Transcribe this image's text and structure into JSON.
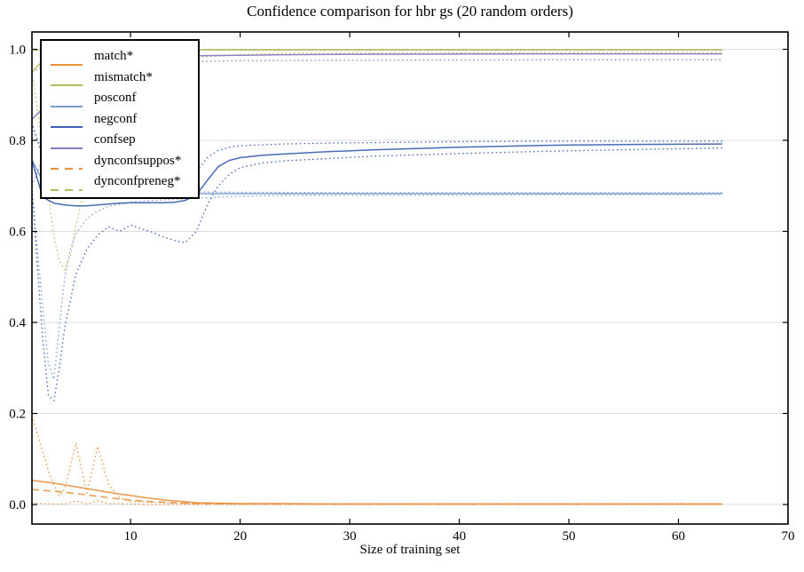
{
  "title": "Confidence comparison for hbr gs (20 random orders)",
  "legend": {
    "items": [
      {
        "id": "match",
        "label": "match*",
        "color": "#E8913F",
        "style": "solid"
      },
      {
        "id": "mismatch",
        "label": "mismatch*",
        "color": "#B8BC60",
        "style": "solid"
      },
      {
        "id": "posconf",
        "label": "posconf",
        "color": "#7A9ED2",
        "style": "solid"
      },
      {
        "id": "negconf",
        "label": "negconf",
        "color": "#3F63B2",
        "style": "solid"
      },
      {
        "id": "confsep",
        "label": "confsep",
        "color": "#8A7BBE",
        "style": "solid"
      },
      {
        "id": "dynconfsuppos",
        "label": "dynconfsuppos*",
        "color": "#E8913F",
        "style": "dashed"
      },
      {
        "id": "dynconfpreneg",
        "label": "dynconfpreneg*",
        "color": "#B8BC60",
        "style": "dashed"
      }
    ]
  },
  "chart_data": {
    "type": "line",
    "title": "Confidence comparison for hbr gs (20 random orders)",
    "xlabel": "Size of training set",
    "ylabel": "",
    "xlim": [
      1,
      70
    ],
    "ylim": [
      -0.043,
      1.038
    ],
    "x_ticks": [
      "10",
      "20",
      "30",
      "40",
      "50",
      "60",
      "70"
    ],
    "x_tick_values": [
      10,
      20,
      30,
      40,
      50,
      60,
      70
    ],
    "y_ticks": [
      "0.0",
      "0.2",
      "0.4",
      "0.6",
      "0.8",
      "1.0"
    ],
    "y_tick_values": [
      0.0,
      0.2,
      0.4,
      0.6,
      0.8,
      1.0
    ],
    "grid": "horizontal-only",
    "grid_color": "#DDDDDD",
    "spine_color": "#000000",
    "legend_position": "upper-left",
    "note": "dotted lines are confidence bands around each mean curve; data ends at x=64",
    "series": [
      {
        "name": "posconf-band-hi",
        "legend": null,
        "color": "#7A9ED2",
        "style": "dotted",
        "width": 1.3,
        "x": [
          1,
          2,
          3,
          4,
          5,
          6,
          8,
          10,
          14,
          20,
          32,
          64
        ],
        "y": [
          0.83,
          0.775,
          0.735,
          0.712,
          0.7,
          0.694,
          0.69,
          0.688,
          0.687,
          0.686,
          0.685,
          0.685
        ]
      },
      {
        "name": "posconf-band-lo",
        "legend": null,
        "color": "#7A9ED2",
        "style": "dotted",
        "width": 1.3,
        "x": [
          1,
          1.5,
          2,
          2.5,
          3,
          3.5,
          4,
          4.5,
          5,
          6,
          7,
          8,
          10,
          12,
          16,
          20,
          24,
          64
        ],
        "y": [
          0.69,
          0.56,
          0.43,
          0.31,
          0.275,
          0.39,
          0.5,
          0.56,
          0.595,
          0.628,
          0.645,
          0.655,
          0.664,
          0.668,
          0.673,
          0.677,
          0.679,
          0.681
        ]
      },
      {
        "name": "negconf-band-hi",
        "legend": null,
        "color": "#3F63B2",
        "style": "dotted",
        "width": 1.3,
        "x": [
          1,
          2,
          3,
          4,
          5,
          6,
          7,
          8,
          10,
          12,
          14,
          16,
          17,
          18,
          19,
          20,
          24,
          28,
          32,
          40,
          48,
          56,
          64
        ],
        "y": [
          0.84,
          0.76,
          0.72,
          0.7,
          0.692,
          0.69,
          0.692,
          0.696,
          0.702,
          0.706,
          0.712,
          0.73,
          0.762,
          0.778,
          0.785,
          0.788,
          0.792,
          0.794,
          0.795,
          0.797,
          0.798,
          0.798,
          0.798
        ]
      },
      {
        "name": "negconf-band-lo",
        "legend": null,
        "color": "#3F63B2",
        "style": "dotted",
        "width": 1.3,
        "x": [
          1,
          1.5,
          2,
          2.5,
          3,
          3.5,
          4,
          5,
          6,
          7,
          8,
          9,
          10,
          11,
          12,
          13,
          14,
          15,
          16,
          17,
          18,
          19,
          20,
          22,
          24,
          28,
          32,
          40,
          48,
          56,
          64
        ],
        "y": [
          0.7,
          0.52,
          0.36,
          0.24,
          0.228,
          0.3,
          0.39,
          0.505,
          0.56,
          0.592,
          0.61,
          0.6,
          0.614,
          0.605,
          0.598,
          0.588,
          0.58,
          0.575,
          0.6,
          0.658,
          0.7,
          0.725,
          0.74,
          0.75,
          0.755,
          0.76,
          0.765,
          0.771,
          0.776,
          0.78,
          0.783
        ]
      },
      {
        "name": "mismatch-band-lo",
        "legend": null,
        "color": "#B8BC60",
        "style": "dotted",
        "width": 1.3,
        "x": [
          1,
          1.5,
          2,
          2.5,
          3,
          3.5,
          4,
          4.5,
          5,
          6,
          7,
          8,
          9,
          10,
          12,
          14,
          16,
          20,
          24,
          32,
          64
        ],
        "y": [
          0.95,
          0.87,
          0.78,
          0.68,
          0.59,
          0.535,
          0.515,
          0.545,
          0.61,
          0.715,
          0.8,
          0.86,
          0.9,
          0.928,
          0.958,
          0.972,
          0.982,
          0.988,
          0.991,
          0.992,
          0.993
        ]
      },
      {
        "name": "confsep-band-lo",
        "legend": null,
        "color": "#8A7BBE",
        "style": "dotted",
        "width": 1.3,
        "x": [
          1,
          2,
          3,
          4,
          6,
          8,
          10,
          12,
          16,
          20,
          32,
          48,
          64
        ],
        "y": [
          0.7,
          0.76,
          0.81,
          0.85,
          0.9,
          0.93,
          0.95,
          0.962,
          0.973,
          0.975,
          0.976,
          0.977,
          0.977
        ]
      },
      {
        "name": "confsep-band-hi",
        "legend": null,
        "color": "#8A7BBE",
        "style": "dotted",
        "width": 1.3,
        "x": [
          1,
          4,
          8,
          16,
          64
        ],
        "y": [
          0.95,
          0.985,
          0.995,
          0.998,
          0.998
        ]
      },
      {
        "name": "match-band-hi",
        "legend": null,
        "color": "#E8913F",
        "style": "dotted",
        "width": 1.3,
        "x": [
          1,
          1.5,
          2,
          2.5,
          3,
          3.5,
          4,
          4.5,
          5,
          5.5,
          6,
          6.5,
          7,
          7.5,
          8,
          9,
          10,
          12,
          14,
          16,
          20,
          64
        ],
        "y": [
          0.195,
          0.155,
          0.115,
          0.075,
          0.042,
          0.018,
          0.035,
          0.085,
          0.135,
          0.08,
          0.025,
          0.075,
          0.128,
          0.085,
          0.045,
          0.014,
          0.007,
          0.005,
          0.003,
          0.002,
          0.002,
          0.002
        ]
      },
      {
        "name": "match-band-lo",
        "legend": null,
        "color": "#E8913F",
        "style": "dotted",
        "width": 1.3,
        "x": [
          1,
          2,
          3,
          4,
          5,
          6,
          7,
          8,
          10,
          12,
          16,
          64
        ],
        "y": [
          0.004,
          0.002,
          0.001,
          0.001,
          0.008,
          0.001,
          0.008,
          0.002,
          0.001,
          0.0,
          0.0,
          0.0
        ]
      },
      {
        "name": "posconf",
        "legend": "posconf",
        "color": "#7A9ED2",
        "style": "solid",
        "width": 1.5,
        "x": [
          1,
          2,
          3,
          4,
          5,
          6,
          8,
          64
        ],
        "y": [
          0.757,
          0.71,
          0.692,
          0.686,
          0.684,
          0.683,
          0.683,
          0.683
        ]
      },
      {
        "name": "negconf",
        "legend": "negconf",
        "color": "#3F63B2",
        "style": "solid",
        "width": 1.5,
        "x": [
          1,
          2,
          3,
          4,
          5,
          6,
          7,
          8,
          9,
          10,
          11,
          12,
          13,
          14,
          15,
          16,
          17,
          18,
          19,
          20,
          22,
          24,
          28,
          32,
          36,
          40,
          48,
          56,
          64
        ],
        "y": [
          0.755,
          0.675,
          0.662,
          0.658,
          0.656,
          0.656,
          0.658,
          0.66,
          0.662,
          0.663,
          0.663,
          0.663,
          0.663,
          0.664,
          0.668,
          0.68,
          0.712,
          0.742,
          0.756,
          0.762,
          0.767,
          0.77,
          0.775,
          0.779,
          0.782,
          0.785,
          0.789,
          0.791,
          0.792
        ]
      },
      {
        "name": "confsep",
        "legend": "confsep",
        "color": "#8A7BBE",
        "style": "solid",
        "width": 1.5,
        "x": [
          1,
          2,
          3,
          4,
          6,
          8,
          10,
          12,
          14,
          16,
          20,
          24,
          32,
          48,
          64
        ],
        "y": [
          0.846,
          0.87,
          0.898,
          0.915,
          0.94,
          0.958,
          0.97,
          0.978,
          0.983,
          0.986,
          0.987,
          0.988,
          0.989,
          0.99,
          0.99
        ]
      },
      {
        "name": "mismatch",
        "legend": "mismatch*",
        "color": "#B8BC60",
        "style": "solid",
        "width": 1.5,
        "x": [
          1,
          2,
          3,
          4,
          6,
          8,
          10,
          16,
          64
        ],
        "y": [
          0.95,
          0.975,
          0.985,
          0.99,
          0.995,
          0.998,
          0.999,
          0.999,
          0.999
        ]
      },
      {
        "name": "match",
        "legend": "match*",
        "color": "#E8913F",
        "style": "solid",
        "width": 1.5,
        "x": [
          1,
          2,
          3,
          4,
          5,
          6,
          7,
          8,
          9,
          10,
          11,
          12,
          13,
          14,
          15,
          16,
          18,
          20,
          24,
          28,
          32,
          40,
          48,
          56,
          64
        ],
        "y": [
          0.053,
          0.05,
          0.047,
          0.043,
          0.039,
          0.035,
          0.031,
          0.027,
          0.023,
          0.02,
          0.016,
          0.013,
          0.01,
          0.008,
          0.006,
          0.004,
          0.003,
          0.002,
          0.002,
          0.001,
          0.001,
          0.001,
          0.001,
          0.001,
          0.001
        ]
      },
      {
        "name": "dynconfpreneg",
        "legend": "dynconfpreneg*",
        "color": "#B8BC60",
        "style": "dashed",
        "width": 1.5,
        "x": [
          1,
          4,
          64
        ],
        "y": [
          0.998,
          0.999,
          0.999
        ]
      },
      {
        "name": "dynconfsuppos",
        "legend": "dynconfsuppos*",
        "color": "#E8913F",
        "style": "dashed",
        "width": 1.5,
        "x": [
          1,
          2,
          3,
          4,
          5,
          6,
          7,
          8,
          9,
          10,
          12,
          14,
          16,
          20,
          24,
          32,
          64
        ],
        "y": [
          0.033,
          0.031,
          0.029,
          0.027,
          0.024,
          0.021,
          0.018,
          0.015,
          0.012,
          0.01,
          0.006,
          0.004,
          0.002,
          0.001,
          0.001,
          0.001,
          0.001
        ]
      }
    ]
  }
}
